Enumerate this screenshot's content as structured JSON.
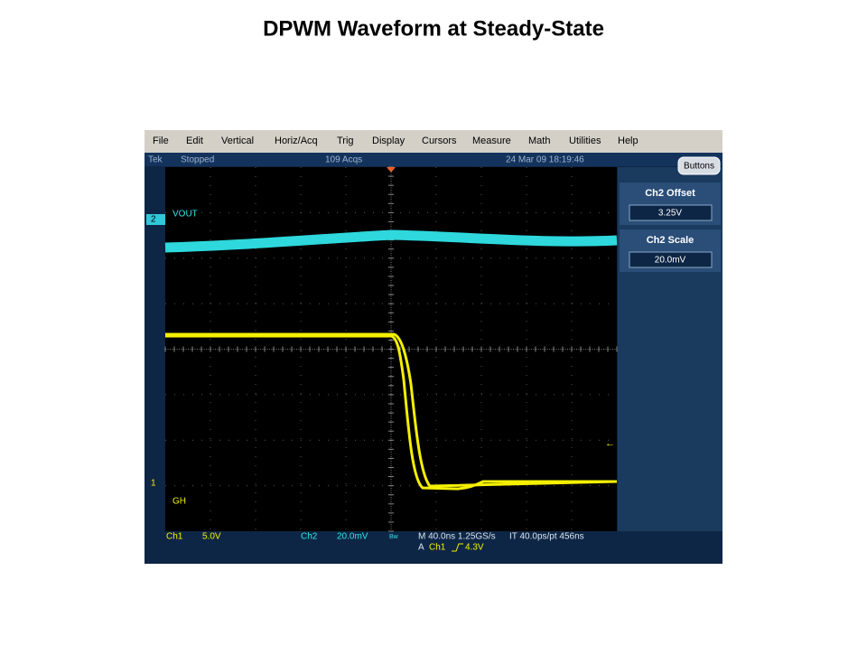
{
  "header": {
    "title": "DPWM Waveform at Steady-State"
  },
  "menu": [
    "File",
    "Edit",
    "Vertical",
    "Horiz/Acq",
    "Trig",
    "Display",
    "Cursors",
    "Measure",
    "Math",
    "Utilities",
    "Help"
  ],
  "status": {
    "brand": "Tek",
    "state": "Stopped",
    "acqs": "109 Acqs",
    "datetime": "24 Mar 09 18:19:46"
  },
  "panel": {
    "button": "Buttons",
    "offset_label": "Ch2 Offset",
    "offset_value": "3.25V",
    "scale_label": "Ch2 Scale",
    "scale_value": "20.0mV"
  },
  "traces": {
    "ch2_marker": "2",
    "ch2_label": "VOUT",
    "ch1_marker": "1",
    "ch1_label": "GH"
  },
  "readout": {
    "ch1": "Ch1",
    "ch1_scale": "5.0V",
    "ch2": "Ch2",
    "ch2_scale": "20.0mV",
    "bw": "Bw",
    "timebase": "M 40.0ns 1.25GS/s",
    "interval": "IT 40.0ps/pt 456ns",
    "trig_mode": "A",
    "trig_source": "Ch1",
    "trig_level": "4.3V"
  }
}
